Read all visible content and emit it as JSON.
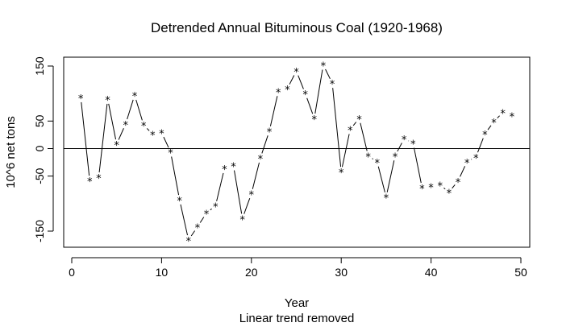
{
  "chart_data": {
    "type": "line",
    "title": "Detrended Annual Bituminous Coal (1920-1968)",
    "xlabel": "Year",
    "subtitle": "Linear trend removed",
    "ylabel": "10^6 net tons",
    "xlim": [
      0,
      50
    ],
    "ylim": [
      -175,
      165
    ],
    "xticks": [
      0,
      10,
      20,
      30,
      40,
      50
    ],
    "yticks": [
      -150,
      -50,
      0,
      50,
      150
    ],
    "ytick_labels": [
      "-150",
      "-50",
      "0",
      "50",
      "150"
    ],
    "reference_line": 0,
    "point_symbol": "*",
    "series": [
      {
        "x": [
          1,
          2,
          3,
          4,
          5,
          6,
          7,
          8,
          9,
          10,
          11,
          12,
          13,
          14,
          15,
          16,
          17,
          18,
          19,
          20,
          21,
          22,
          23,
          24,
          25,
          26,
          27,
          28,
          29,
          30,
          31,
          32,
          33,
          34,
          35,
          36,
          37,
          38,
          39,
          40,
          41,
          42,
          43,
          44,
          45,
          46,
          47,
          48,
          49
        ],
        "y": [
          93,
          -58,
          -52,
          90,
          8,
          45,
          97,
          43,
          26,
          29,
          -6,
          -93,
          -166,
          -142,
          -117,
          -104,
          -36,
          -31,
          -127,
          -82,
          -17,
          32,
          104,
          109,
          141,
          100,
          55,
          152,
          119,
          -42,
          35,
          55,
          -13,
          -24,
          -88,
          -13,
          18,
          10,
          -71,
          -69,
          -66,
          -79,
          -59,
          -24,
          -15,
          27,
          49,
          66,
          60
        ]
      }
    ]
  }
}
